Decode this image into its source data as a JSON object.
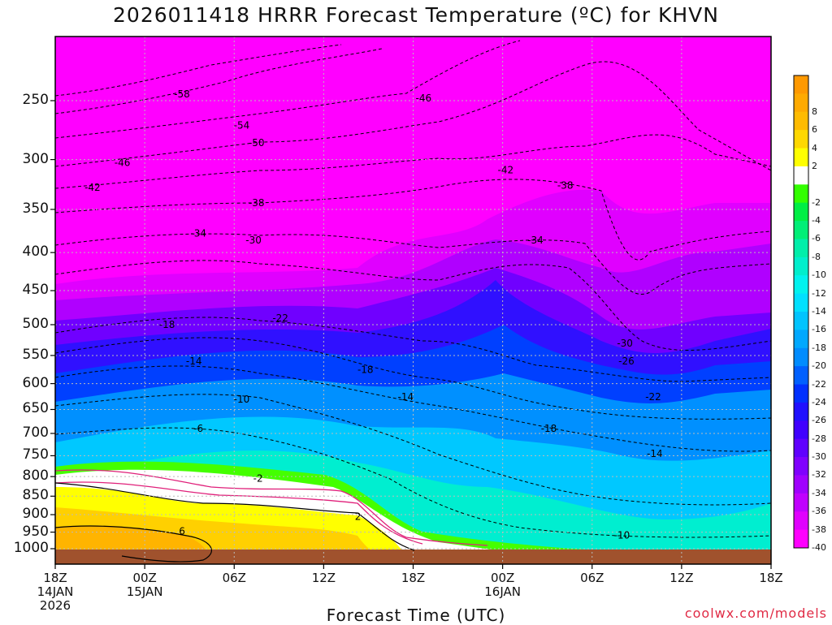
{
  "title": "2026011418 HRRR Forecast Temperature (ºC) for KHVN",
  "xlabel": "Forecast Time (UTC)",
  "credit": "coolwx.com/models",
  "chart_data": {
    "type": "heatmap",
    "title": "2026011418 HRRR Forecast Temperature (ºC) for KHVN",
    "xlabel": "Forecast Time (UTC)",
    "ylabel": "",
    "y_scale": "log-pressure (hPa, inverted)",
    "ylim": [
      1000,
      200
    ],
    "y_ticks": [
      250,
      300,
      350,
      400,
      450,
      500,
      550,
      600,
      650,
      700,
      750,
      800,
      850,
      900,
      950,
      1000
    ],
    "x_ticks": [
      {
        "hour": 0,
        "label": "18Z",
        "sub1": "14JAN",
        "sub2": "2026"
      },
      {
        "hour": 6,
        "label": "00Z",
        "sub1": "15JAN",
        "sub2": ""
      },
      {
        "hour": 12,
        "label": "06Z",
        "sub1": "",
        "sub2": ""
      },
      {
        "hour": 18,
        "label": "12Z",
        "sub1": "",
        "sub2": ""
      },
      {
        "hour": 24,
        "label": "18Z",
        "sub1": "",
        "sub2": ""
      },
      {
        "hour": 30,
        "label": "00Z",
        "sub1": "16JAN",
        "sub2": ""
      },
      {
        "hour": 36,
        "label": "06Z",
        "sub1": "",
        "sub2": ""
      },
      {
        "hour": 42,
        "label": "12Z",
        "sub1": "",
        "sub2": ""
      },
      {
        "hour": 48,
        "label": "18Z",
        "sub1": "",
        "sub2": ""
      }
    ],
    "grid": true,
    "legend_position": "right",
    "colorbar": [
      {
        "value": "",
        "color": "#ff9900"
      },
      {
        "value": "8",
        "color": "#ffaa00"
      },
      {
        "value": "6",
        "color": "#ffbb00"
      },
      {
        "value": "4",
        "color": "#ffd800"
      },
      {
        "value": "2",
        "color": "#ffff00"
      },
      {
        "value": "",
        "color": "#ffffff"
      },
      {
        "value": "-2",
        "color": "#33ff00"
      },
      {
        "value": "-4",
        "color": "#00ee44"
      },
      {
        "value": "-6",
        "color": "#00ee77"
      },
      {
        "value": "-8",
        "color": "#00eeaa"
      },
      {
        "value": "-10",
        "color": "#00eecc"
      },
      {
        "value": "-12",
        "color": "#00f2ee"
      },
      {
        "value": "-14",
        "color": "#00e0ff"
      },
      {
        "value": "-16",
        "color": "#00c4ff"
      },
      {
        "value": "-18",
        "color": "#00a8ff"
      },
      {
        "value": "-20",
        "color": "#008cff"
      },
      {
        "value": "-22",
        "color": "#0060ff"
      },
      {
        "value": "-24",
        "color": "#0030ff"
      },
      {
        "value": "-26",
        "color": "#2010ff"
      },
      {
        "value": "-28",
        "color": "#4000ff"
      },
      {
        "value": "-30",
        "color": "#6000ff"
      },
      {
        "value": "-32",
        "color": "#8000ff"
      },
      {
        "value": "-34",
        "color": "#a000ff"
      },
      {
        "value": "-36",
        "color": "#c000ff"
      },
      {
        "value": "-38",
        "color": "#e000ff"
      },
      {
        "value": "-40",
        "color": "#ff00ff"
      }
    ],
    "contour_labels": [
      {
        "text": "-58",
        "hour": 8.5,
        "p": 245
      },
      {
        "text": "-54",
        "hour": 12.5,
        "p": 270
      },
      {
        "text": "-50",
        "hour": 13.5,
        "p": 285
      },
      {
        "text": "-46",
        "hour": 4.5,
        "p": 303
      },
      {
        "text": "-46",
        "hour": 24.7,
        "p": 248
      },
      {
        "text": "-42",
        "hour": 2.5,
        "p": 327
      },
      {
        "text": "-42",
        "hour": 30.2,
        "p": 310
      },
      {
        "text": "-38",
        "hour": 13.5,
        "p": 343
      },
      {
        "text": "-38",
        "hour": 34.2,
        "p": 325
      },
      {
        "text": "-34",
        "hour": 9.6,
        "p": 377
      },
      {
        "text": "-34",
        "hour": 32.2,
        "p": 385
      },
      {
        "text": "-30",
        "hour": 13.3,
        "p": 385
      },
      {
        "text": "-30",
        "hour": 38.2,
        "p": 530
      },
      {
        "text": "-26",
        "hour": 38.3,
        "p": 560
      },
      {
        "text": "-22",
        "hour": 15.1,
        "p": 490
      },
      {
        "text": "-22",
        "hour": 40.1,
        "p": 625
      },
      {
        "text": "-18",
        "hour": 7.5,
        "p": 500
      },
      {
        "text": "-18",
        "hour": 20.8,
        "p": 575
      },
      {
        "text": "-18",
        "hour": 33.1,
        "p": 690
      },
      {
        "text": "-14",
        "hour": 9.3,
        "p": 560
      },
      {
        "text": "-14",
        "hour": 23.5,
        "p": 625
      },
      {
        "text": "-14",
        "hour": 40.2,
        "p": 745
      },
      {
        "text": "-10",
        "hour": 12.5,
        "p": 630
      },
      {
        "text": "-10",
        "hour": 38.0,
        "p": 960
      },
      {
        "text": "-6",
        "hour": 9.6,
        "p": 690
      },
      {
        "text": "-2",
        "hour": 13.6,
        "p": 805
      },
      {
        "text": "2",
        "hour": 20.3,
        "p": 905
      },
      {
        "text": "6",
        "hour": 8.5,
        "p": 948
      }
    ]
  }
}
